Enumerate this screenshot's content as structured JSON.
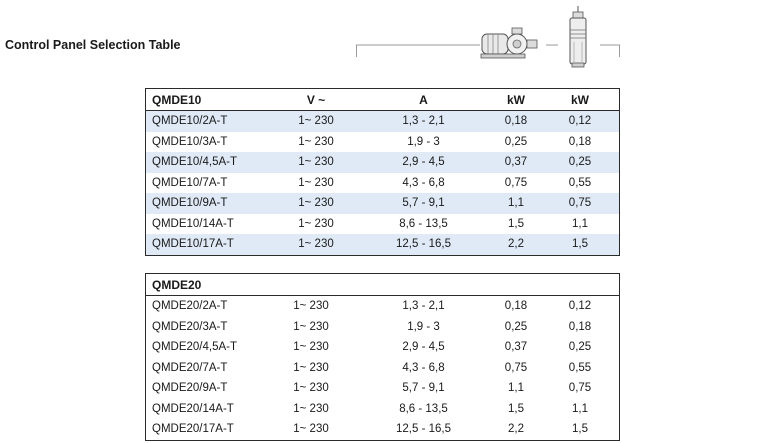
{
  "page_title": "Control Panel Selection Table",
  "icons": {
    "pump": "surface-pump-icon",
    "submersible": "submersible-pump-icon"
  },
  "colors": {
    "row_alt": "#dfeaf6",
    "border": "#2b2b2b"
  },
  "tables": [
    {
      "name": "QMDE10",
      "headers": [
        "QMDE10",
        "V ~",
        "A",
        "kW",
        "kW"
      ],
      "rows": [
        [
          "QMDE10/2A-T",
          "1~ 230",
          "1,3 - 2,1",
          "0,18",
          "0,12"
        ],
        [
          "QMDE10/3A-T",
          "1~ 230",
          "1,9 - 3",
          "0,25",
          "0,18"
        ],
        [
          "QMDE10/4,5A-T",
          "1~ 230",
          "2,9 - 4,5",
          "0,37",
          "0,25"
        ],
        [
          "QMDE10/7A-T",
          "1~ 230",
          "4,3 - 6,8",
          "0,75",
          "0,55"
        ],
        [
          "QMDE10/9A-T",
          "1~ 230",
          "5,7 - 9,1",
          "1,1",
          "0,75"
        ],
        [
          "QMDE10/14A-T",
          "1~ 230",
          "8,6 - 13,5",
          "1,5",
          "1,1"
        ],
        [
          "QMDE10/17A-T",
          "1~ 230",
          "12,5 - 16,5",
          "2,2",
          "1,5"
        ]
      ]
    },
    {
      "name": "QMDE20",
      "headers": [
        "QMDE20",
        "",
        "",
        "",
        ""
      ],
      "rows": [
        [
          "QMDE20/2A-T",
          "1~ 230",
          "1,3 - 2,1",
          "0,18",
          "0,12"
        ],
        [
          "QMDE20/3A-T",
          "1~ 230",
          "1,9 - 3",
          "0,25",
          "0,18"
        ],
        [
          "QMDE20/4,5A-T",
          "1~ 230",
          "2,9 - 4,5",
          "0,37",
          "0,25"
        ],
        [
          "QMDE20/7A-T",
          "1~ 230",
          "4,3 - 6,8",
          "0,75",
          "0,55"
        ],
        [
          "QMDE20/9A-T",
          "1~ 230",
          "5,7 - 9,1",
          "1,1",
          "0,75"
        ],
        [
          "QMDE20/14A-T",
          "1~ 230",
          "8,6 - 13,5",
          "1,5",
          "1,1"
        ],
        [
          "QMDE20/17A-T",
          "1~ 230",
          "12,5 - 16,5",
          "2,2",
          "1,5"
        ]
      ]
    }
  ]
}
